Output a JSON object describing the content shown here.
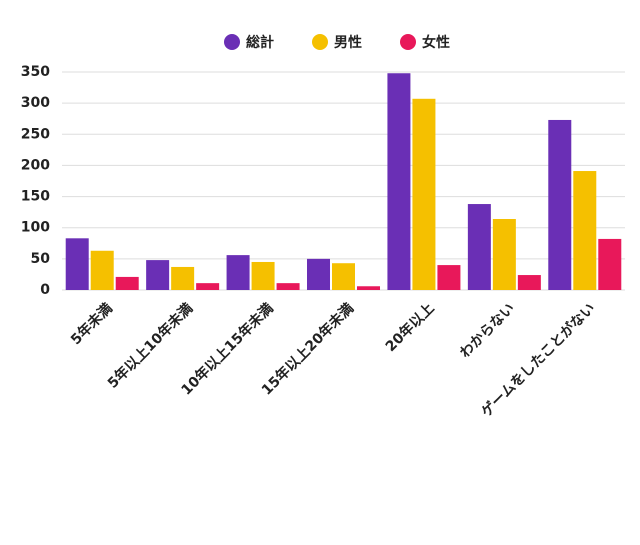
{
  "chart_data": {
    "type": "bar",
    "categories": [
      "5年未満",
      "5年以上10年未満",
      "10年以上15年未満",
      "15年以上20年未満",
      "20年以上",
      "わからない",
      "ゲームをしたことがない"
    ],
    "series": [
      {
        "name": "総計",
        "color": "#6a2fb5",
        "values": [
          83,
          48,
          56,
          50,
          348,
          138,
          273
        ]
      },
      {
        "name": "男性",
        "color": "#f5c000",
        "values": [
          63,
          37,
          45,
          43,
          307,
          114,
          191
        ]
      },
      {
        "name": "女性",
        "color": "#e8185a",
        "values": [
          21,
          11,
          11,
          6,
          40,
          24,
          82
        ]
      }
    ],
    "ylim": [
      0,
      350
    ],
    "yticks": [
      0,
      50,
      100,
      150,
      200,
      250,
      300,
      350
    ],
    "grid": true,
    "legend": "top"
  }
}
